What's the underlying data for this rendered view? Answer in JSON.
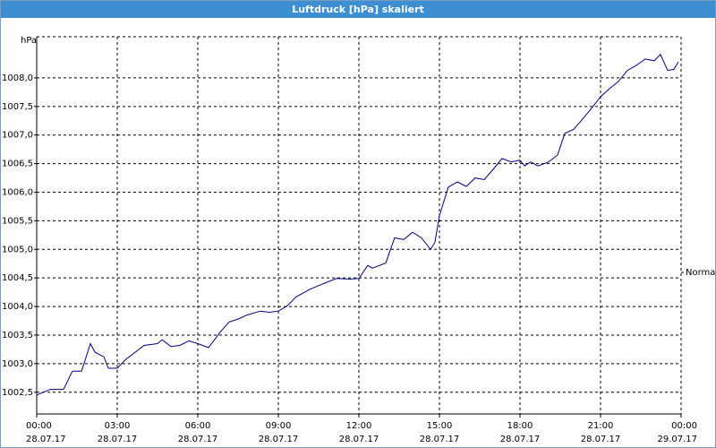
{
  "chart_data": {
    "type": "line",
    "title": "Luftdruck [hPa] skaliert",
    "y_label": "hPa",
    "xlim": [
      0,
      24
    ],
    "xticks": [
      {
        "value": 0,
        "label": "00:00",
        "date": "28.07.17"
      },
      {
        "value": 3,
        "label": "03:00",
        "date": "28.07.17"
      },
      {
        "value": 6,
        "label": "06:00",
        "date": "28.07.17"
      },
      {
        "value": 9,
        "label": "09:00",
        "date": "28.07.17"
      },
      {
        "value": 12,
        "label": "12:00",
        "date": "28.07.17"
      },
      {
        "value": 15,
        "label": "15:00",
        "date": "28.07.17"
      },
      {
        "value": 18,
        "label": "18:00",
        "date": "28.07.17"
      },
      {
        "value": 21,
        "label": "21:00",
        "date": "28.07.17"
      },
      {
        "value": 24,
        "label": "00:00",
        "date": "29.07.17"
      }
    ],
    "ylim": [
      1002.12,
      1008.72
    ],
    "yticks": [
      {
        "value": 1002.5,
        "label": "1002,5"
      },
      {
        "value": 1003.0,
        "label": "1003,0"
      },
      {
        "value": 1003.5,
        "label": "1003,5"
      },
      {
        "value": 1004.0,
        "label": "1004,0"
      },
      {
        "value": 1004.5,
        "label": "1004,5"
      },
      {
        "value": 1005.0,
        "label": "1005,0"
      },
      {
        "value": 1005.5,
        "label": "1005,5"
      },
      {
        "value": 1006.0,
        "label": "1006,0"
      },
      {
        "value": 1006.5,
        "label": "1006,5"
      },
      {
        "value": 1007.0,
        "label": "1007,0"
      },
      {
        "value": 1007.5,
        "label": "1007,5"
      },
      {
        "value": 1008.0,
        "label": "1008,0"
      }
    ],
    "grid": true,
    "legend": "right",
    "x": [
      0,
      0.5,
      1,
      1.33,
      1.67,
      2,
      2.17,
      2.5,
      2.67,
      3,
      3.33,
      3.67,
      4,
      4.5,
      4.67,
      5,
      5.33,
      5.67,
      6,
      6.4,
      6.83,
      7.17,
      7.5,
      7.83,
      8.33,
      8.67,
      9,
      9.33,
      9.67,
      10.17,
      10.67,
      11.17,
      11.67,
      12,
      12.33,
      12.5,
      13,
      13.33,
      13.67,
      14,
      14.33,
      14.67,
      14.83,
      15,
      15.33,
      15.67,
      16,
      16.33,
      16.67,
      17,
      17.33,
      17.67,
      18,
      18.17,
      18.4,
      18.67,
      19.07,
      19.4,
      19.67,
      20,
      20.33,
      20.67,
      21,
      21.33,
      21.67,
      22,
      22.33,
      22.67,
      23,
      23.23,
      23.5,
      23.73,
      23.9
    ],
    "series": [
      {
        "name": "Normal",
        "color": "#000080",
        "values": [
          1002.45,
          1002.55,
          1002.55,
          1002.87,
          1002.87,
          1003.35,
          1003.2,
          1003.12,
          1002.92,
          1002.92,
          1003.08,
          1003.2,
          1003.32,
          1003.35,
          1003.42,
          1003.3,
          1003.32,
          1003.4,
          1003.35,
          1003.28,
          1003.55,
          1003.73,
          1003.78,
          1003.85,
          1003.92,
          1003.9,
          1003.92,
          1004.01,
          1004.17,
          1004.3,
          1004.4,
          1004.49,
          1004.48,
          1004.49,
          1004.72,
          1004.67,
          1004.76,
          1005.2,
          1005.17,
          1005.3,
          1005.2,
          1005.0,
          1005.12,
          1005.59,
          1006.09,
          1006.18,
          1006.1,
          1006.25,
          1006.22,
          1006.4,
          1006.59,
          1006.53,
          1006.56,
          1006.46,
          1006.53,
          1006.46,
          1006.53,
          1006.65,
          1007.03,
          1007.1,
          1007.28,
          1007.47,
          1007.67,
          1007.81,
          1007.94,
          1008.13,
          1008.22,
          1008.33,
          1008.3,
          1008.41,
          1008.13,
          1008.15,
          1008.28
        ]
      }
    ]
  }
}
